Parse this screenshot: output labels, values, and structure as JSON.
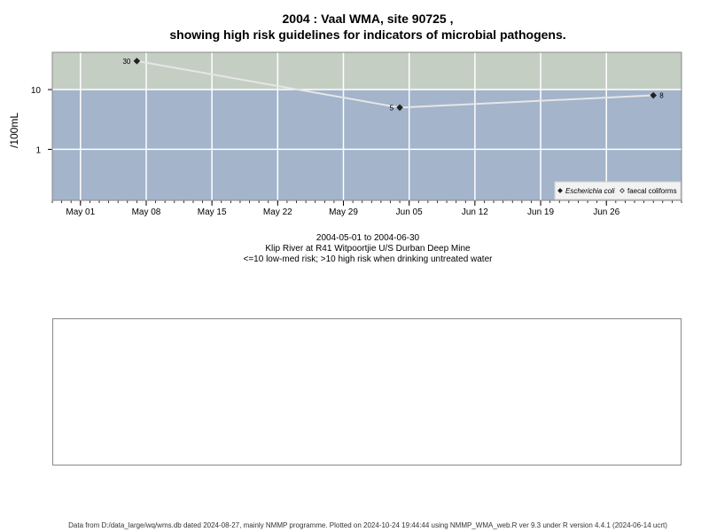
{
  "title_line1": "2004 : Vaal WMA, site 90725 ,",
  "title_line2": "showing high risk guidelines for indicators of microbial pathogens.",
  "subtitle": {
    "date_range": "2004-05-01 to 2004-06-30",
    "site_name": "Klip River at R41 Witpoortjie U/S Durban Deep Mine",
    "risk_note": "<=10 low-med risk; >10 high risk when drinking untreated water"
  },
  "footer": "Data from D:/data_large/wq/wms.db dated 2024-08-27, mainly NMMP programme. Plotted on 2024-10-24 19:44:44 using NMMP_WMA_web.R ver 9.3 under R version 4.4.1 (2024-06-14 ucrt)",
  "chart_data": {
    "type": "line",
    "ylabel": "/100mL",
    "y_scale": "log",
    "ylim": [
      0.14,
      42
    ],
    "yticks": [
      1,
      10
    ],
    "xlim": [
      "2004-04-28",
      "2004-07-04"
    ],
    "xticks": [
      {
        "date": "2004-05-01",
        "label": "May 01"
      },
      {
        "date": "2004-05-08",
        "label": "May 08"
      },
      {
        "date": "2004-05-15",
        "label": "May 15"
      },
      {
        "date": "2004-05-22",
        "label": "May 22"
      },
      {
        "date": "2004-05-29",
        "label": "May 29"
      },
      {
        "date": "2004-06-05",
        "label": "Jun 05"
      },
      {
        "date": "2004-06-12",
        "label": "Jun 12"
      },
      {
        "date": "2004-06-19",
        "label": "Jun 19"
      },
      {
        "date": "2004-06-26",
        "label": "Jun 26"
      }
    ],
    "risk_threshold": 10,
    "colors": {
      "high_risk_band": "#c4cec3",
      "low_risk_band": "#a3b4cb",
      "grid": "#ffffff",
      "line": "#e6e6e6",
      "marker": "#222222"
    },
    "series": [
      {
        "name": "Escherichia coli",
        "marker": "diamond-filled",
        "points": [
          {
            "x": "2004-05-07",
            "y": 30,
            "label": "30"
          },
          {
            "x": "2004-06-04",
            "y": 5,
            "label": "5"
          },
          {
            "x": "2004-07-01",
            "y": 8,
            "label": "8"
          }
        ]
      },
      {
        "name": "faecal coliforms",
        "marker": "diamond-open",
        "points": []
      }
    ],
    "legend_position": "bottom-right",
    "grid": true
  }
}
